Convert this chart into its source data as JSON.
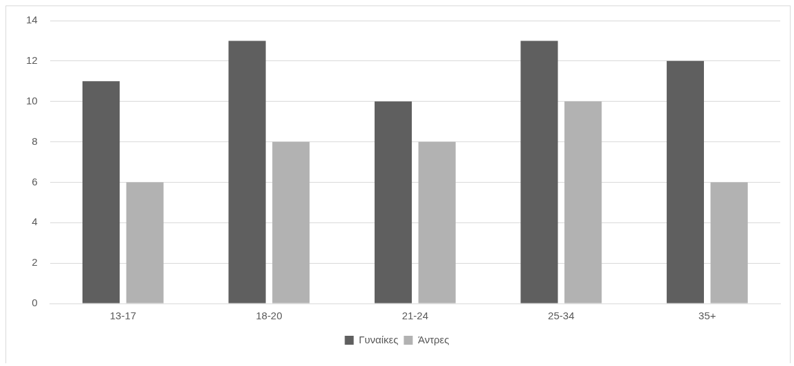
{
  "chart_data": {
    "type": "bar",
    "categories": [
      "13-17",
      "18-20",
      "21-24",
      "25-34",
      "35+"
    ],
    "series": [
      {
        "name": "Γυναίκες",
        "color": "#5f5f5f",
        "values": [
          11,
          13,
          10,
          13,
          12
        ]
      },
      {
        "name": "Άντρες",
        "color": "#b2b2b2",
        "values": [
          6,
          8,
          8,
          10,
          6
        ]
      }
    ],
    "ylim": [
      0,
      14
    ],
    "yticks": [
      0,
      2,
      4,
      6,
      8,
      10,
      12,
      14
    ],
    "grid": "y",
    "legend": "bottom"
  }
}
